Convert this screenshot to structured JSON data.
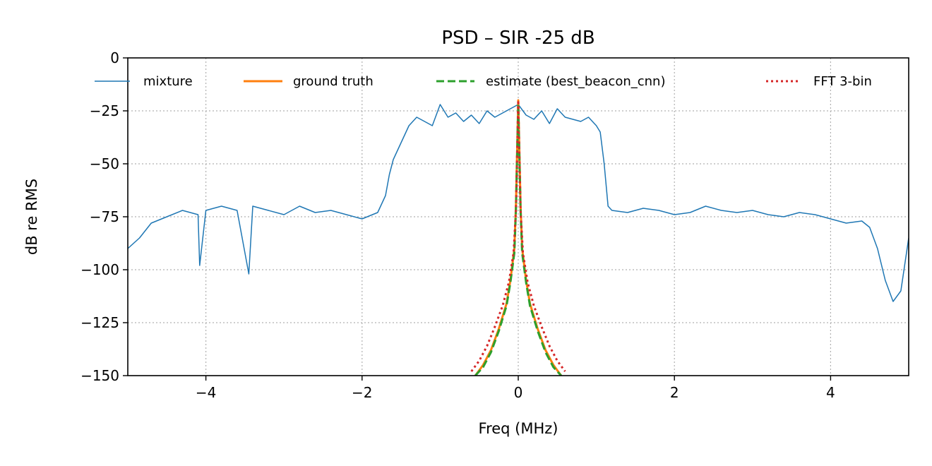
{
  "chart_data": {
    "type": "line",
    "title": "PSD – SIR -25 dB",
    "xlabel": "Freq (MHz)",
    "ylabel": "dB re RMS",
    "xlim": [
      -5,
      5
    ],
    "ylim": [
      -150,
      0
    ],
    "xticks": [
      -4,
      -2,
      0,
      2,
      4
    ],
    "xtick_labels": [
      "−4",
      "−2",
      "0",
      "2",
      "4"
    ],
    "yticks": [
      0,
      -25,
      -50,
      -75,
      -100,
      -125,
      -150
    ],
    "ytick_labels": [
      "0",
      "−25",
      "−50",
      "−75",
      "−100",
      "−125",
      "−150"
    ],
    "grid": true,
    "legend": "top",
    "series": [
      {
        "name": "mixture",
        "color": "#1f77b4",
        "style": "solid",
        "x": [
          -5.0,
          -4.85,
          -4.7,
          -4.5,
          -4.3,
          -4.1,
          -4.08,
          -4.0,
          -3.8,
          -3.6,
          -3.45,
          -3.4,
          -3.2,
          -3.0,
          -2.8,
          -2.6,
          -2.4,
          -2.2,
          -2.0,
          -1.8,
          -1.7,
          -1.65,
          -1.6,
          -1.5,
          -1.4,
          -1.3,
          -1.2,
          -1.1,
          -1.0,
          -0.9,
          -0.8,
          -0.7,
          -0.6,
          -0.5,
          -0.4,
          -0.3,
          -0.2,
          -0.1,
          0.0,
          0.1,
          0.2,
          0.3,
          0.4,
          0.5,
          0.6,
          0.7,
          0.8,
          0.9,
          1.0,
          1.05,
          1.1,
          1.15,
          1.2,
          1.4,
          1.6,
          1.8,
          2.0,
          2.2,
          2.4,
          2.6,
          2.8,
          3.0,
          3.2,
          3.4,
          3.6,
          3.8,
          4.0,
          4.2,
          4.4,
          4.5,
          4.6,
          4.7,
          4.8,
          4.9,
          5.0
        ],
        "y": [
          -90,
          -85,
          -78,
          -75,
          -72,
          -74,
          -98,
          -72,
          -70,
          -72,
          -102,
          -70,
          -72,
          -74,
          -70,
          -73,
          -72,
          -74,
          -76,
          -73,
          -65,
          -55,
          -48,
          -40,
          -32,
          -28,
          -30,
          -32,
          -22,
          -28,
          -26,
          -30,
          -27,
          -31,
          -25,
          -28,
          -26,
          -24,
          -22,
          -27,
          -29,
          -25,
          -31,
          -24,
          -28,
          -29,
          -30,
          -28,
          -32,
          -35,
          -50,
          -70,
          -72,
          -73,
          -71,
          -72,
          -74,
          -73,
          -70,
          -72,
          -73,
          -72,
          -74,
          -75,
          -73,
          -74,
          -76,
          -78,
          -77,
          -80,
          -90,
          -105,
          -115,
          -110,
          -85
        ]
      },
      {
        "name": "ground truth",
        "color": "#ff7f0e",
        "style": "solid",
        "x": [
          -0.55,
          -0.45,
          -0.35,
          -0.25,
          -0.15,
          -0.1,
          -0.05,
          -0.03,
          0.0,
          0.03,
          0.05,
          0.1,
          0.15,
          0.25,
          0.35,
          0.45,
          0.55
        ],
        "y": [
          -150,
          -145,
          -138,
          -128,
          -116,
          -105,
          -90,
          -70,
          -20,
          -70,
          -90,
          -105,
          -116,
          -128,
          -138,
          -145,
          -150
        ]
      },
      {
        "name": "estimate (best_beacon_cnn)",
        "color": "#2ca02c",
        "style": "dashed",
        "x": [
          -0.55,
          -0.45,
          -0.35,
          -0.25,
          -0.15,
          -0.1,
          -0.05,
          -0.03,
          0.0,
          0.03,
          0.05,
          0.1,
          0.15,
          0.25,
          0.35,
          0.45,
          0.55
        ],
        "y": [
          -150,
          -146,
          -139,
          -129,
          -117,
          -106,
          -92,
          -72,
          -22,
          -72,
          -92,
          -106,
          -117,
          -129,
          -139,
          -146,
          -150
        ]
      },
      {
        "name": "FFT 3-bin",
        "color": "#d62728",
        "style": "dotted",
        "x": [
          -0.6,
          -0.5,
          -0.4,
          -0.3,
          -0.2,
          -0.12,
          -0.06,
          -0.03,
          0.0,
          0.03,
          0.06,
          0.12,
          0.2,
          0.3,
          0.4,
          0.5,
          0.6
        ],
        "y": [
          -148,
          -143,
          -136,
          -127,
          -117,
          -106,
          -92,
          -72,
          -20,
          -72,
          -92,
          -106,
          -117,
          -127,
          -136,
          -143,
          -148
        ]
      }
    ]
  }
}
